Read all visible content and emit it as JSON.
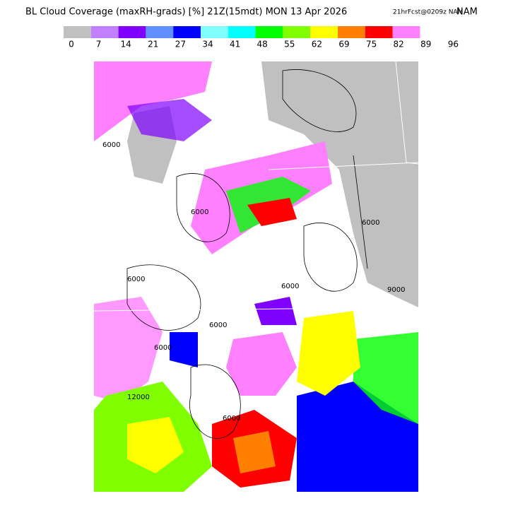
{
  "header": {
    "title": "BL Cloud Coverage (maxRH-grads) [%] 21Z(15mdt) MON 13 Apr 2026",
    "forecast": "21hrFcst@0209z NAM"
  },
  "colorbar": {
    "colors": [
      "#c0c0c0",
      "#c080ff",
      "#8000ff",
      "#6090ff",
      "#0000ff",
      "#80ffff",
      "#00ffff",
      "#00ff00",
      "#80ff00",
      "#ffff00",
      "#ff8000",
      "#ff0000",
      "#ff80ff"
    ],
    "labels": [
      "0",
      "7",
      "14",
      "21",
      "27",
      "34",
      "41",
      "48",
      "55",
      "62",
      "69",
      "75",
      "82",
      "89",
      "96"
    ]
  },
  "map": {
    "contour_labels": [
      "6000",
      "6000",
      "6000",
      "6000",
      "6000",
      "6000",
      "6000",
      "9000",
      "12000",
      "6000"
    ]
  }
}
